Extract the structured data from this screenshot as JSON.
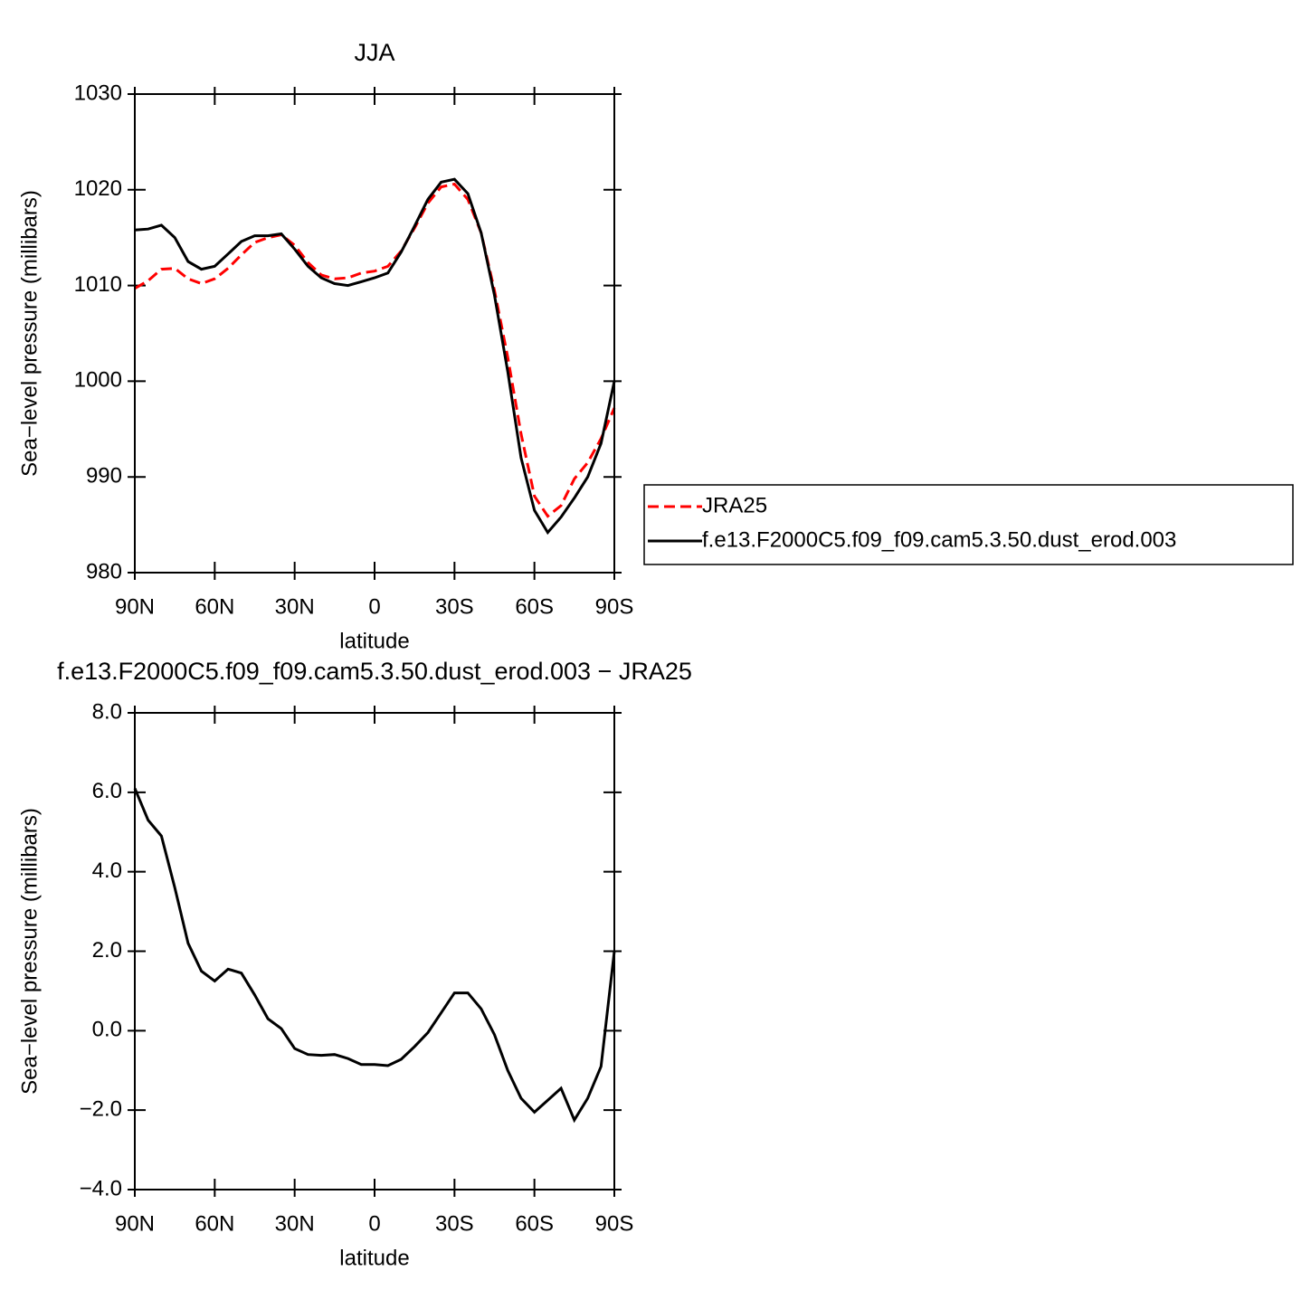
{
  "chart_data": [
    {
      "type": "line",
      "title": "JJA",
      "xlabel": "latitude",
      "ylabel": "Sea−level pressure (millibars)",
      "x": [
        90,
        85,
        80,
        75,
        70,
        65,
        60,
        55,
        50,
        45,
        40,
        35,
        30,
        25,
        20,
        15,
        10,
        5,
        0,
        -5,
        -10,
        -15,
        -20,
        -25,
        -30,
        -35,
        -40,
        -45,
        -50,
        -55,
        -60,
        -65,
        -70,
        -75,
        -80,
        -85,
        -90
      ],
      "xlim": [
        90,
        -90
      ],
      "xticks": [
        {
          "value": 90,
          "label": "90N"
        },
        {
          "value": 60,
          "label": "60N"
        },
        {
          "value": 30,
          "label": "30N"
        },
        0,
        {
          "value": -30,
          "label": "30S"
        },
        {
          "value": -60,
          "label": "60S"
        },
        {
          "value": -90,
          "label": "90S"
        }
      ],
      "ylim": [
        980,
        1030
      ],
      "yticks": [
        980,
        990,
        1000,
        1010,
        1020,
        1030
      ],
      "legend": "right",
      "series": [
        {
          "name": "JRA25",
          "color": "#ff0000",
          "dashed": true,
          "values": [
            1009.7,
            1010.5,
            1011.7,
            1011.8,
            1010.7,
            1010.2,
            1010.7,
            1011.8,
            1013.2,
            1014.5,
            1015.0,
            1015.3,
            1014.2,
            1012.4,
            1011.1,
            1010.7,
            1010.8,
            1011.3,
            1011.5,
            1012.0,
            1013.6,
            1016.0,
            1018.6,
            1020.3,
            1020.6,
            1019.0,
            1015.5,
            1009.5,
            1002.5,
            994.5,
            988.0,
            985.9,
            987.0,
            989.8,
            991.5,
            994.0,
            997.2
          ]
        },
        {
          "name": "f.e13.F2000C5.f09_f09.cam5.3.50.dust_erod.003",
          "color": "#000000",
          "dashed": false,
          "values": [
            1015.8,
            1015.9,
            1016.3,
            1015.0,
            1012.5,
            1011.7,
            1012.0,
            1013.3,
            1014.6,
            1015.2,
            1015.2,
            1015.4,
            1013.8,
            1012.0,
            1010.8,
            1010.2,
            1010.0,
            1010.4,
            1010.8,
            1011.3,
            1013.5,
            1016.2,
            1019.0,
            1020.8,
            1021.1,
            1019.6,
            1015.5,
            1009.0,
            1001.0,
            992.0,
            986.5,
            984.2,
            985.8,
            987.8,
            990.0,
            993.5,
            1000.0
          ]
        }
      ]
    },
    {
      "type": "line",
      "title": "f.e13.F2000C5.f09_f09.cam5.3.50.dust_erod.003 − JRA25",
      "xlabel": "latitude",
      "ylabel": "Sea−level pressure (millibars)",
      "x": [
        90,
        85,
        80,
        75,
        70,
        65,
        60,
        55,
        50,
        45,
        40,
        35,
        30,
        25,
        20,
        15,
        10,
        5,
        0,
        -5,
        -10,
        -15,
        -20,
        -25,
        -30,
        -35,
        -40,
        -45,
        -50,
        -55,
        -60,
        -65,
        -70,
        -75,
        -80,
        -85,
        -90
      ],
      "xlim": [
        90,
        -90
      ],
      "xticks": [
        {
          "value": 90,
          "label": "90N"
        },
        {
          "value": 60,
          "label": "60N"
        },
        {
          "value": 30,
          "label": "30N"
        },
        0,
        {
          "value": -30,
          "label": "30S"
        },
        {
          "value": -60,
          "label": "60S"
        },
        {
          "value": -90,
          "label": "90S"
        }
      ],
      "ylim": [
        -4,
        8
      ],
      "yticks": [
        {
          "value": -4,
          "label": "−4.0"
        },
        {
          "value": -2,
          "label": "−2.0"
        },
        {
          "value": 0,
          "label": "0.0"
        },
        {
          "value": 2,
          "label": "2.0"
        },
        {
          "value": 4,
          "label": "4.0"
        },
        {
          "value": 6,
          "label": "6.0"
        },
        {
          "value": 8,
          "label": "8.0"
        }
      ],
      "series": [
        {
          "color": "#000000",
          "dashed": false,
          "values": [
            6.1,
            5.3,
            4.9,
            3.6,
            2.2,
            1.5,
            1.25,
            1.55,
            1.45,
            0.9,
            0.3,
            0.05,
            -0.45,
            -0.6,
            -0.62,
            -0.6,
            -0.7,
            -0.85,
            -0.85,
            -0.88,
            -0.72,
            -0.4,
            -0.05,
            0.45,
            0.95,
            0.95,
            0.55,
            -0.1,
            -1.0,
            -1.7,
            -2.05,
            -1.75,
            -1.45,
            -2.25,
            -1.7,
            -0.9,
            2.0
          ]
        }
      ]
    }
  ]
}
